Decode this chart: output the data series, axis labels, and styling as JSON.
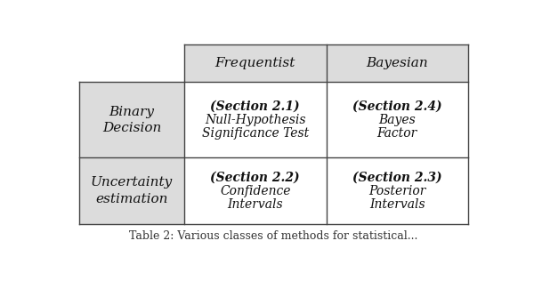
{
  "fig_width": 6.0,
  "fig_height": 3.16,
  "dpi": 100,
  "bg_color": "#ffffff",
  "header_bg": "#dcdcdc",
  "row_bg": "#dcdcdc",
  "cell_bg": "#ffffff",
  "border_color": "#444444",
  "header_row_labels": [
    "Frequentist",
    "Bayesian"
  ],
  "header_col_labels": [
    "Binary\nDecision",
    "Uncertainty\nestimation"
  ],
  "cells": [
    [
      "(Section 2.1)\nNull-Hypothesis\nSignificance Test",
      "(Section 2.4)\nBayes\nFactor"
    ],
    [
      "(Section 2.2)\nConfidence\nIntervals",
      "(Section 2.3)\nPosterior\nIntervals"
    ]
  ],
  "caption": "Table 2: Various classes of methods for statistical...",
  "lw": 1.0,
  "text_color": "#111111",
  "header_fontsize": 11,
  "cell_fontsize": 10,
  "caption_fontsize": 9
}
